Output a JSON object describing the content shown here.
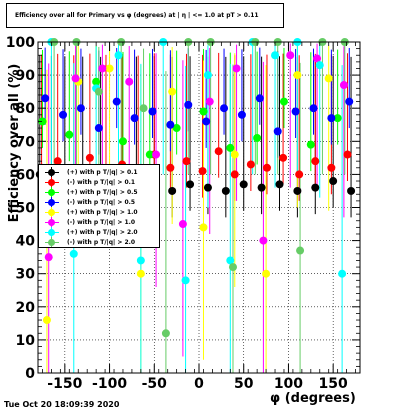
{
  "title": "Efficiency over all for Primary vs φ (degrees) at | η | <= 1.0 at pT > 0.11",
  "timestamp": "Tue Oct 20 18:09:39 2020",
  "chart_data": {
    "type": "scatter",
    "title": "Efficiency over all for Primary vs φ (degrees) at | η | <= 1.0 at pT > 0.11",
    "xlabel": "φ (degrees)",
    "ylabel": "Efficiency over all (%)",
    "xlim": [
      -180,
      180
    ],
    "ylim": [
      0,
      100
    ],
    "x_ticks": [
      -150,
      -100,
      -50,
      0,
      50,
      100,
      150
    ],
    "y_ticks": [
      0,
      10,
      20,
      30,
      40,
      50,
      60,
      70,
      80,
      90,
      100
    ],
    "grid": true,
    "legend_position": "middle-left",
    "series": [
      {
        "name": "(+) with p T/|q| > 0.1",
        "color": "#000000",
        "x": [
          -178,
          -165,
          -150,
          -130,
          -110,
          -90,
          -70,
          -50,
          -30,
          -10,
          10,
          30,
          50,
          70,
          90,
          110,
          130,
          150,
          170
        ],
        "y": [
          60,
          58,
          57,
          56,
          55,
          57,
          56,
          58,
          55,
          57,
          56,
          55,
          57,
          56,
          57,
          55,
          56,
          58,
          55
        ]
      },
      {
        "name": "(-) with p T/|q| > 0.1",
        "color": "#ff0000",
        "x": [
          -176,
          -158,
          -140,
          -122,
          -104,
          -86,
          -68,
          -50,
          -32,
          -14,
          4,
          22,
          40,
          58,
          76,
          94,
          112,
          130,
          148,
          166
        ],
        "y": [
          62,
          64,
          60,
          65,
          61,
          63,
          59,
          66,
          62,
          64,
          61,
          67,
          60,
          63,
          62,
          65,
          60,
          64,
          62,
          66
        ]
      },
      {
        "name": "(+) with p T/|q| > 0.5",
        "color": "#00ff00",
        "x": [
          -175,
          -145,
          -115,
          -85,
          -55,
          -25,
          5,
          35,
          65,
          95,
          125,
          155
        ],
        "y": [
          76,
          72,
          88,
          70,
          66,
          74,
          79,
          68,
          71,
          82,
          69,
          77
        ]
      },
      {
        "name": "(-) with p T/|q| > 0.5",
        "color": "#0000ff",
        "x": [
          -172,
          -152,
          -132,
          -112,
          -92,
          -72,
          -52,
          -32,
          -12,
          8,
          28,
          48,
          68,
          88,
          108,
          128,
          148,
          168
        ],
        "y": [
          83,
          78,
          80,
          74,
          82,
          77,
          79,
          75,
          81,
          76,
          80,
          78,
          83,
          73,
          79,
          80,
          77,
          82
        ]
      },
      {
        "name": "(+) with p T/|q| > 1.0",
        "color": "#ffff00",
        "x": [
          -170,
          -135,
          -100,
          -65,
          -30,
          5,
          40,
          75,
          110,
          145
        ],
        "y": [
          16,
          88,
          92,
          30,
          85,
          44,
          66,
          30,
          90,
          89
        ]
      },
      {
        "name": "(-) with p T/|q| > 1.0",
        "color": "#ff00ff",
        "x": [
          -168,
          -138,
          -108,
          -78,
          -48,
          -18,
          12,
          42,
          72,
          102,
          132,
          162
        ],
        "y": [
          35,
          89,
          92,
          88,
          66,
          45,
          82,
          92,
          40,
          96,
          95,
          87
        ]
      },
      {
        "name": "(+) with p T/|q| > 2.0",
        "color": "#00ffff",
        "x": [
          -165,
          -140,
          -115,
          -90,
          -65,
          -40,
          -15,
          10,
          35,
          60,
          85,
          110,
          135,
          160
        ],
        "y": [
          100,
          36,
          86,
          96,
          34,
          100,
          28,
          90,
          34,
          100,
          96,
          100,
          93,
          30
        ]
      },
      {
        "name": "(-) with p T/|q| > 2.0",
        "color": "#66cc66",
        "x": [
          -162,
          -137,
          -112,
          -87,
          -62,
          -37,
          -12,
          13,
          38,
          63,
          88,
          113,
          138,
          163
        ],
        "y": [
          100,
          100,
          85,
          100,
          80,
          12,
          100,
          100,
          32,
          100,
          100,
          37,
          100,
          100
        ]
      }
    ]
  }
}
